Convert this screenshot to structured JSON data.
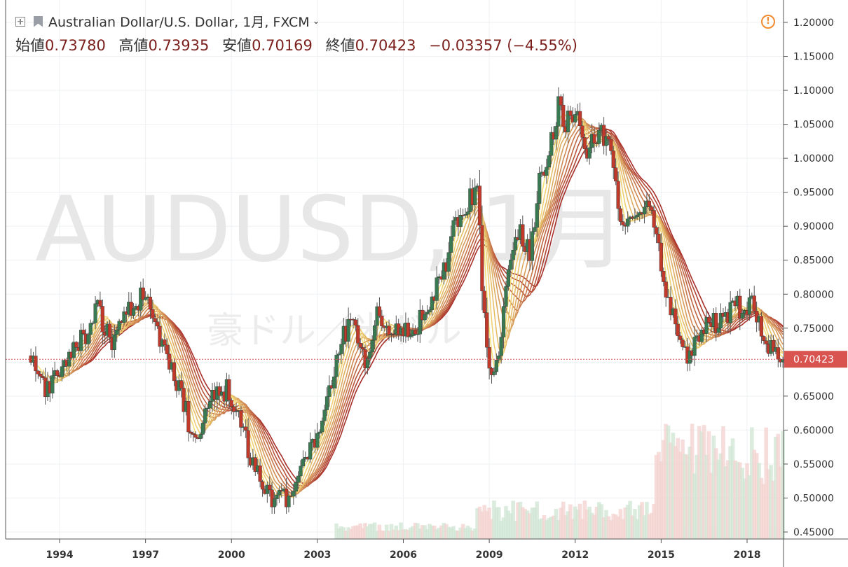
{
  "header": {
    "symbol_title": "Australian Dollar/U.S. Dollar, 1月, FXCM",
    "ohlc": [
      {
        "label": "始値",
        "value": "0.73780"
      },
      {
        "label": "高値",
        "value": "0.73935"
      },
      {
        "label": "安値",
        "value": "0.70169"
      },
      {
        "label": "終値",
        "value": "0.70423"
      }
    ],
    "change": "−0.03357 (−4.55%)",
    "icons": [
      "add-symbol-icon",
      "flag-icon",
      "chevron-down-icon",
      "warning-icon"
    ]
  },
  "watermark": {
    "symbol": "AUDUSD, 1月",
    "name": "豪ドル／米ドル"
  },
  "colors": {
    "up": "#3a7a52",
    "down": "#c0392b",
    "last_price_bg": "#d9534f",
    "ribbon_fast": "#f7e27a",
    "ribbon_slow": "#a8302a",
    "warning": "#f28b30"
  },
  "chart_data": {
    "type": "candlestick",
    "interval": "1 month",
    "x_ticks": [
      "1994",
      "1997",
      "2000",
      "2003",
      "2006",
      "2009",
      "2012",
      "2015",
      "2018"
    ],
    "x_range": [
      1992.0,
      2019.6
    ],
    "y_ticks": [
      "1.20000",
      "1.15000",
      "1.10000",
      "1.05000",
      "1.00000",
      "0.95000",
      "0.90000",
      "0.85000",
      "0.80000",
      "0.75000",
      "0.70000",
      "0.65000",
      "0.60000",
      "0.55000",
      "0.50000",
      "0.45000"
    ],
    "y_range": [
      0.435,
      1.225
    ],
    "last_price": "0.70423",
    "price_path": [
      [
        1993.0,
        0.7
      ],
      [
        1993.4,
        0.66
      ],
      [
        1993.8,
        0.67
      ],
      [
        1994.4,
        0.72
      ],
      [
        1995.0,
        0.74
      ],
      [
        1995.3,
        0.78
      ],
      [
        1995.8,
        0.73
      ],
      [
        1996.1,
        0.76
      ],
      [
        1996.5,
        0.78
      ],
      [
        1996.9,
        0.8
      ],
      [
        1997.1,
        0.78
      ],
      [
        1997.5,
        0.74
      ],
      [
        1997.9,
        0.69
      ],
      [
        1998.4,
        0.63
      ],
      [
        1998.7,
        0.58
      ],
      [
        1999.0,
        0.61
      ],
      [
        1999.4,
        0.65
      ],
      [
        1999.9,
        0.66
      ],
      [
        2000.4,
        0.6
      ],
      [
        2000.7,
        0.56
      ],
      [
        2001.0,
        0.53
      ],
      [
        2001.3,
        0.5
      ],
      [
        2001.6,
        0.51
      ],
      [
        2001.9,
        0.5
      ],
      [
        2002.3,
        0.53
      ],
      [
        2002.6,
        0.55
      ],
      [
        2003.0,
        0.59
      ],
      [
        2003.4,
        0.65
      ],
      [
        2003.9,
        0.74
      ],
      [
        2004.3,
        0.76
      ],
      [
        2004.7,
        0.7
      ],
      [
        2005.1,
        0.77
      ],
      [
        2005.5,
        0.75
      ],
      [
        2006.0,
        0.74
      ],
      [
        2006.4,
        0.75
      ],
      [
        2006.9,
        0.79
      ],
      [
        2007.4,
        0.83
      ],
      [
        2007.8,
        0.91
      ],
      [
        2008.2,
        0.93
      ],
      [
        2008.6,
        0.96
      ],
      [
        2008.8,
        0.77
      ],
      [
        2009.1,
        0.66
      ],
      [
        2009.3,
        0.7
      ],
      [
        2009.6,
        0.82
      ],
      [
        2009.9,
        0.9
      ],
      [
        2010.4,
        0.86
      ],
      [
        2010.8,
        0.98
      ],
      [
        2011.1,
        1.01
      ],
      [
        2011.4,
        1.08
      ],
      [
        2011.7,
        1.05
      ],
      [
        2012.0,
        1.07
      ],
      [
        2012.4,
        1.01
      ],
      [
        2012.8,
        1.04
      ],
      [
        2013.2,
        1.03
      ],
      [
        2013.5,
        0.92
      ],
      [
        2013.9,
        0.9
      ],
      [
        2014.3,
        0.93
      ],
      [
        2014.6,
        0.94
      ],
      [
        2014.9,
        0.87
      ],
      [
        2015.3,
        0.78
      ],
      [
        2015.7,
        0.72
      ],
      [
        2016.0,
        0.71
      ],
      [
        2016.4,
        0.75
      ],
      [
        2016.8,
        0.76
      ],
      [
        2017.2,
        0.76
      ],
      [
        2017.5,
        0.79
      ],
      [
        2017.9,
        0.77
      ],
      [
        2018.1,
        0.8
      ],
      [
        2018.4,
        0.76
      ],
      [
        2018.8,
        0.72
      ],
      [
        2019.1,
        0.71
      ],
      [
        2019.3,
        0.70423
      ]
    ],
    "ma_ribbon_periods": [
      4,
      6,
      8,
      10,
      12,
      14,
      16,
      18,
      20,
      22,
      24
    ],
    "volume_start": 2003.6
  }
}
